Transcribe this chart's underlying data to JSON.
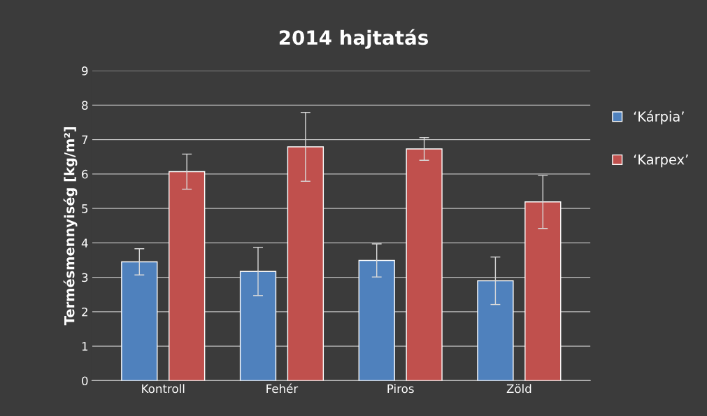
{
  "chart_data": {
    "type": "bar",
    "title": "2014 hajtatás",
    "ylabel": "Termésmennyiség [kg/m²]",
    "categories": [
      "Kontroll",
      "Fehér",
      "Piros",
      "Zöld"
    ],
    "series": [
      {
        "name": "‘Kárpia’",
        "color": "#4f81bd",
        "values": [
          3.45,
          3.17,
          3.49,
          2.9
        ],
        "errors": [
          0.38,
          0.7,
          0.48,
          0.69
        ]
      },
      {
        "name": "‘Karpex’",
        "color": "#c0504d",
        "values": [
          6.07,
          6.79,
          6.73,
          5.19
        ],
        "errors": [
          0.51,
          1.0,
          0.33,
          0.77
        ]
      }
    ],
    "ylim": [
      0,
      9
    ],
    "yticks": [
      0,
      1,
      2,
      3,
      4,
      5,
      6,
      7,
      8,
      9
    ],
    "grid": "y",
    "legend": "right"
  }
}
